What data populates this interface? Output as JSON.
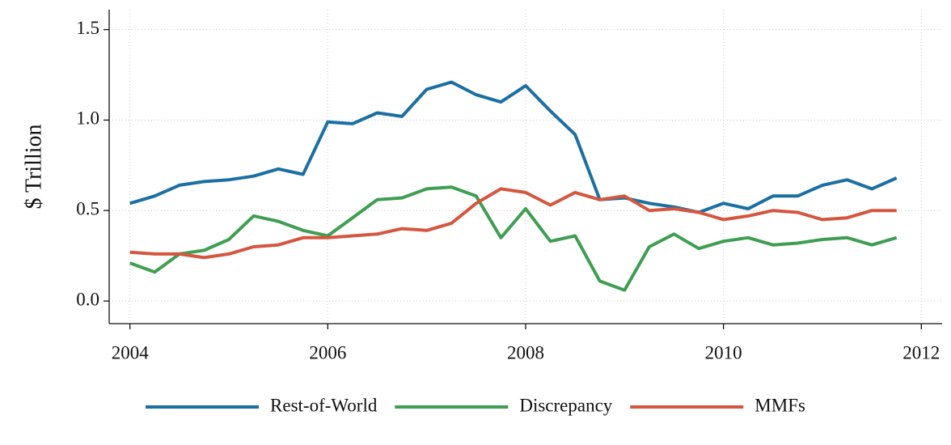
{
  "chart_data": {
    "type": "line",
    "ylabel": "$ Trillion",
    "x": [
      2004,
      2004.25,
      2004.5,
      2004.75,
      2005,
      2005.25,
      2005.5,
      2005.75,
      2006,
      2006.25,
      2006.5,
      2006.75,
      2007,
      2007.25,
      2007.5,
      2007.75,
      2008,
      2008.25,
      2008.5,
      2008.75,
      2009,
      2009.25,
      2009.5,
      2009.75,
      2010,
      2010.25,
      2010.5,
      2010.75,
      2011,
      2011.25,
      2011.5,
      2011.75
    ],
    "series": [
      {
        "name": "Rest-of-World",
        "color": "#1b6fa3",
        "values": [
          0.54,
          0.58,
          0.64,
          0.66,
          0.67,
          0.69,
          0.73,
          0.7,
          0.99,
          0.98,
          1.04,
          1.02,
          1.17,
          1.21,
          1.14,
          1.1,
          1.19,
          1.05,
          0.92,
          0.56,
          0.57,
          0.54,
          0.52,
          0.49,
          0.54,
          0.51,
          0.58,
          0.58,
          0.64,
          0.67,
          0.62,
          0.68
        ]
      },
      {
        "name": "Discrepancy",
        "color": "#3f9e52",
        "values": [
          0.21,
          0.16,
          0.26,
          0.28,
          0.34,
          0.47,
          0.44,
          0.39,
          0.36,
          0.46,
          0.56,
          0.57,
          0.62,
          0.63,
          0.58,
          0.35,
          0.51,
          0.33,
          0.36,
          0.11,
          0.06,
          0.3,
          0.37,
          0.29,
          0.33,
          0.35,
          0.31,
          0.32,
          0.34,
          0.35,
          0.31,
          0.35
        ]
      },
      {
        "name": "MMFs",
        "color": "#d5563f",
        "values": [
          0.27,
          0.26,
          0.26,
          0.24,
          0.26,
          0.3,
          0.31,
          0.35,
          0.35,
          0.36,
          0.37,
          0.4,
          0.39,
          0.43,
          0.54,
          0.62,
          0.6,
          0.53,
          0.6,
          0.56,
          0.58,
          0.5,
          0.51,
          0.49,
          0.45,
          0.47,
          0.5,
          0.49,
          0.45,
          0.46,
          0.5,
          0.5
        ]
      }
    ],
    "xlim": [
      2003.79,
      2012.21
    ],
    "xticks": [
      2004,
      2006,
      2008,
      2010,
      2012
    ],
    "ylim": [
      -0.125,
      1.61
    ],
    "yticks": [
      {
        "value": 0,
        "label": "0.0"
      },
      0.5,
      {
        "value": 1,
        "label": "1.0"
      },
      1.5
    ],
    "grid": true,
    "legend": "bottom"
  }
}
